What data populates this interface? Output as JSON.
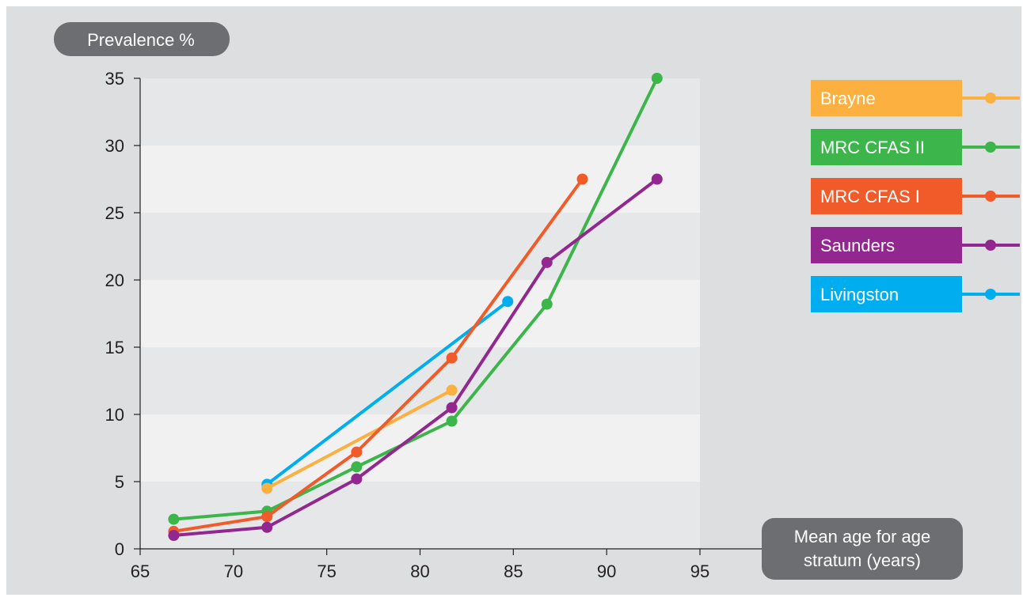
{
  "chart_data": {
    "type": "line",
    "ylabel": "Prevalence %",
    "xlabel": "Mean age for age stratum (years)",
    "xlabel_lines": [
      "Mean age for age",
      "stratum (years)"
    ],
    "xlim": [
      65,
      95
    ],
    "ylim": [
      0,
      35
    ],
    "xticks": [
      "65",
      "70",
      "75",
      "80",
      "85",
      "90",
      "95"
    ],
    "yticks": [
      "0",
      "5",
      "10",
      "15",
      "20",
      "25",
      "30",
      "35"
    ],
    "grid": "alternating horizontal bands",
    "legend_position": "right",
    "series": [
      {
        "name": "Brayne",
        "color": "#FBB040",
        "points": [
          [
            71.8,
            4.5
          ],
          [
            81.7,
            11.8
          ]
        ]
      },
      {
        "name": "MRC CFAS II",
        "color": "#3CB54A",
        "points": [
          [
            66.8,
            2.2
          ],
          [
            71.8,
            2.8
          ],
          [
            76.6,
            6.1
          ],
          [
            81.7,
            9.5
          ],
          [
            86.8,
            18.2
          ],
          [
            92.7,
            35.0
          ]
        ]
      },
      {
        "name": "MRC CFAS I",
        "color": "#F15A29",
        "points": [
          [
            66.8,
            1.3
          ],
          [
            71.8,
            2.4
          ],
          [
            76.6,
            7.2
          ],
          [
            81.7,
            14.2
          ],
          [
            88.7,
            27.5
          ]
        ]
      },
      {
        "name": "Saunders",
        "color": "#92278F",
        "points": [
          [
            66.8,
            1.0
          ],
          [
            71.8,
            1.6
          ],
          [
            76.6,
            5.2
          ],
          [
            81.7,
            10.5
          ],
          [
            86.8,
            21.3
          ],
          [
            92.7,
            27.5
          ]
        ]
      },
      {
        "name": "Livingston",
        "color": "#00AEEF",
        "points": [
          [
            71.8,
            4.8
          ],
          [
            84.7,
            18.4
          ]
        ]
      }
    ],
    "draw_order": [
      "Livingston",
      "Brayne",
      "MRC CFAS II",
      "MRC CFAS I",
      "Saunders"
    ]
  },
  "colors": {
    "background": "#DDDEE0",
    "band_dark": "#E6E7E8",
    "band_light": "#F1F1F2",
    "label_box": "#6D6E71",
    "axis": "#231F20"
  }
}
